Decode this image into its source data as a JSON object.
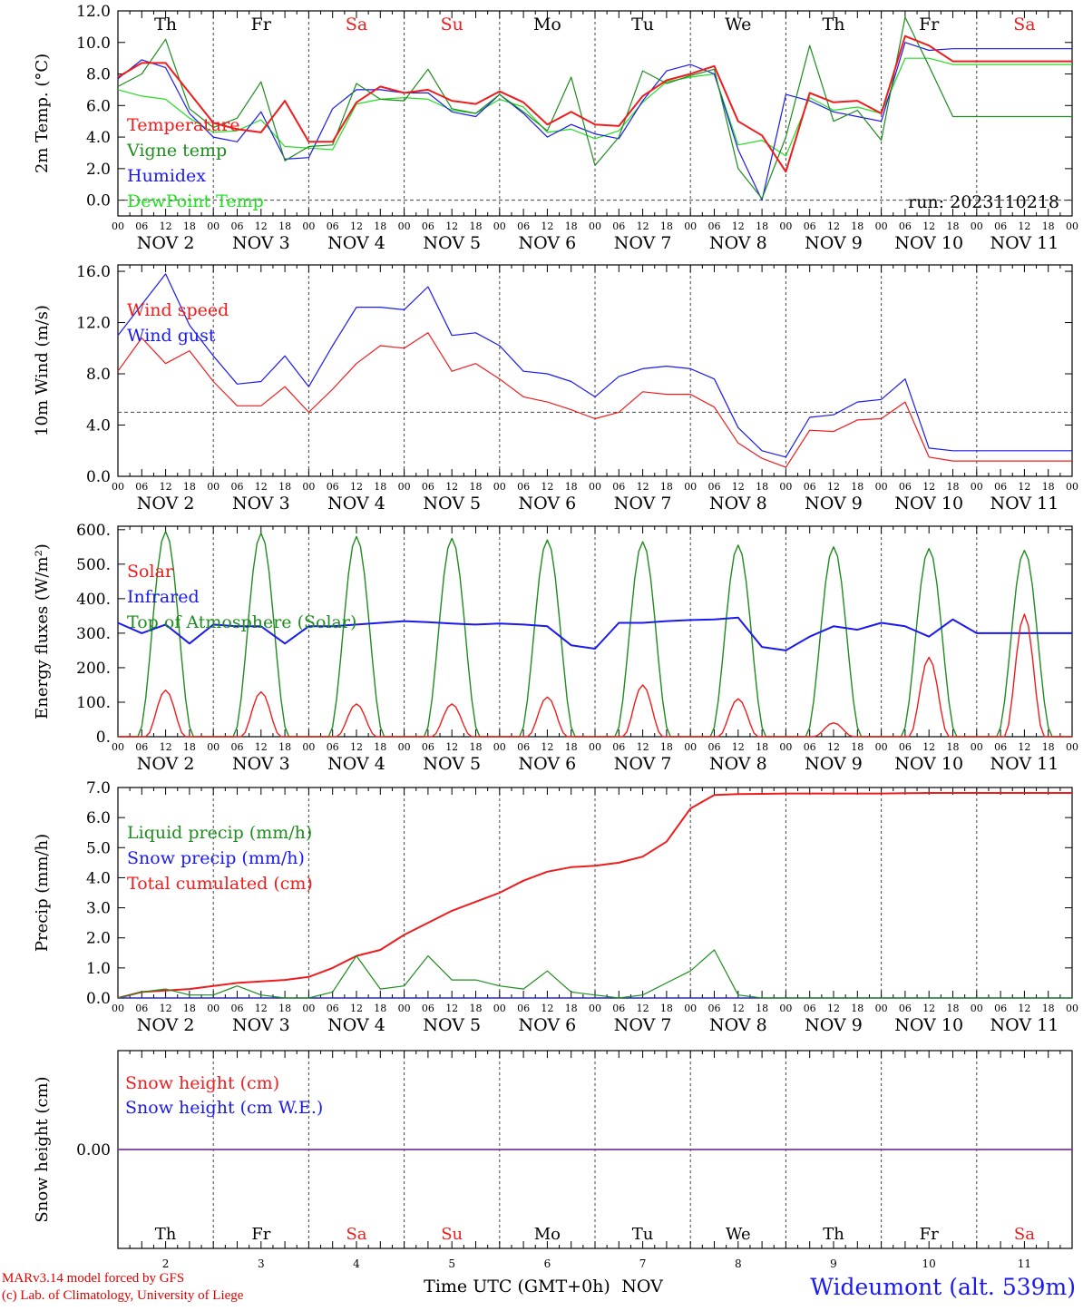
{
  "days": [
    "Th",
    "Fr",
    "Sa",
    "Su",
    "Mo",
    "Tu",
    "We",
    "Th",
    "Fr",
    "Sa"
  ],
  "weekend_days": [
    "Sa",
    "Su"
  ],
  "date_labels": [
    "NOV  2",
    "NOV  3",
    "NOV  4",
    "NOV  5",
    "NOV  6",
    "NOV  7",
    "NOV  8",
    "NOV  9",
    "NOV 10",
    "NOV 11"
  ],
  "bottom_day_numbers": [
    "2",
    "3",
    "4",
    "5",
    "6",
    "7",
    "8",
    "9",
    "10",
    "11"
  ],
  "hour_labels": [
    "00",
    "06",
    "12",
    "18"
  ],
  "hour_end": "00",
  "run_label": "run: 2023110218",
  "xlabel": "Time UTC (GMT+0h)",
  "xlabel_month": "NOV",
  "footer": {
    "line1": "MARv3.14 model forced by GFS",
    "line2": "(c) Lab. of Climatology, University of Liege",
    "station": "Wideumont (alt. 539m)"
  },
  "colors": {
    "red": "#ee1c1c",
    "green": "#1e8c1e",
    "blue": "#1a1aee",
    "lightgreen": "#22dd22",
    "purple": "#7a3a9a",
    "grid": "#444444"
  },
  "chart_data": [
    {
      "type": "line",
      "ylabel": "2m Temp. (°C)",
      "ylim": [
        -1,
        12
      ],
      "yticks": [
        "12.0",
        "10.0",
        "8.0",
        "6.0",
        "4.0",
        "2.0",
        "0.0"
      ],
      "reference_line": 0,
      "x_unit": "hours since 2023-11-02 00 UTC",
      "series": [
        {
          "name": "Temperature",
          "color": "red",
          "x": [
            0,
            6,
            12,
            18,
            24,
            30,
            36,
            42,
            48,
            54,
            60,
            66,
            72,
            78,
            84,
            90,
            96,
            102,
            108,
            114,
            120,
            126,
            132,
            138,
            144,
            150,
            156,
            162,
            168,
            174,
            180,
            186,
            192,
            198,
            204,
            210,
            216,
            222,
            228,
            234,
            240
          ],
          "values": [
            7.8,
            8.7,
            8.7,
            6.8,
            4.9,
            4.5,
            4.3,
            6.3,
            3.7,
            3.7,
            6.2,
            7.2,
            6.8,
            7.0,
            6.3,
            6.1,
            6.9,
            6.2,
            4.8,
            5.6,
            4.8,
            4.7,
            6.6,
            7.6,
            8.0,
            8.5,
            5.0,
            4.1,
            1.8,
            6.8,
            6.2,
            6.3,
            5.5,
            10.4,
            9.8,
            8.8,
            8.8,
            8.8,
            8.8,
            8.8,
            8.8
          ]
        },
        {
          "name": "Vigne temp",
          "color": "green",
          "x": [
            0,
            6,
            12,
            18,
            24,
            30,
            36,
            42,
            48,
            54,
            60,
            66,
            72,
            78,
            84,
            90,
            96,
            102,
            108,
            114,
            120,
            126,
            132,
            138,
            144,
            150,
            156,
            162,
            168,
            174,
            180,
            186,
            192,
            198,
            204,
            210,
            216,
            222,
            228,
            234,
            240
          ],
          "values": [
            7.2,
            8.0,
            10.2,
            5.8,
            4.6,
            5.2,
            7.5,
            2.5,
            3.4,
            3.5,
            7.4,
            6.4,
            6.3,
            8.3,
            5.8,
            5.5,
            6.7,
            5.6,
            4.4,
            7.8,
            2.2,
            4.0,
            8.2,
            7.4,
            7.9,
            8.3,
            2.0,
            0.1,
            4.0,
            9.8,
            5.0,
            5.7,
            3.8,
            11.6,
            8.5,
            5.3,
            5.3,
            5.3,
            5.3,
            5.3,
            5.3
          ]
        },
        {
          "name": "Humidex",
          "color": "blue",
          "x": [
            0,
            6,
            12,
            18,
            24,
            30,
            36,
            42,
            48,
            54,
            60,
            66,
            72,
            78,
            84,
            90,
            96,
            102,
            108,
            114,
            120,
            126,
            132,
            138,
            144,
            150,
            156,
            162,
            168,
            174,
            180,
            186,
            192,
            198,
            204,
            210,
            216,
            222,
            228,
            234,
            240
          ],
          "values": [
            7.7,
            8.9,
            8.4,
            5.5,
            4.0,
            3.7,
            5.6,
            2.6,
            2.7,
            5.8,
            7.0,
            7.0,
            6.8,
            6.8,
            5.6,
            5.3,
            6.7,
            5.5,
            4.0,
            4.8,
            4.2,
            3.9,
            6.3,
            8.2,
            8.6,
            8.0,
            3.2,
            0.0,
            6.7,
            6.3,
            5.6,
            5.3,
            5.0,
            10.0,
            9.5,
            9.6,
            9.6,
            9.6,
            9.6,
            9.6,
            9.6
          ]
        },
        {
          "name": "DewPoint Temp",
          "color": "lightgreen",
          "x": [
            0,
            6,
            12,
            18,
            24,
            30,
            36,
            42,
            48,
            54,
            60,
            66,
            72,
            78,
            84,
            90,
            96,
            102,
            108,
            114,
            120,
            126,
            132,
            138,
            144,
            150,
            156,
            162,
            168,
            174,
            180,
            186,
            192,
            198,
            204,
            210,
            216,
            222,
            228,
            234,
            240
          ],
          "values": [
            7.0,
            6.6,
            6.4,
            5.2,
            4.3,
            4.4,
            5.1,
            3.4,
            3.3,
            3.2,
            6.1,
            6.4,
            6.5,
            6.4,
            5.7,
            5.5,
            6.4,
            5.9,
            4.3,
            4.5,
            3.9,
            4.4,
            6.2,
            7.5,
            7.8,
            8.0,
            3.5,
            3.8,
            2.8,
            6.5,
            5.7,
            5.9,
            5.5,
            9.0,
            9.0,
            8.6,
            8.6,
            8.6,
            8.6,
            8.6,
            8.6
          ]
        }
      ]
    },
    {
      "type": "line",
      "ylabel": "10m Wind (m/s)",
      "ylim": [
        0,
        16.5
      ],
      "yticks": [
        "16.0",
        "12.0",
        "8.0",
        "4.0",
        "0.0"
      ],
      "reference_line": 5,
      "series": [
        {
          "name": "Wind speed",
          "color": "red",
          "x": [
            0,
            6,
            12,
            18,
            24,
            30,
            36,
            42,
            48,
            54,
            60,
            66,
            72,
            78,
            84,
            90,
            96,
            102,
            108,
            114,
            120,
            126,
            132,
            138,
            144,
            150,
            156,
            162,
            168,
            174,
            180,
            186,
            192,
            198,
            204,
            210,
            216,
            222,
            228,
            234,
            240
          ],
          "values": [
            8.2,
            10.8,
            8.8,
            9.8,
            7.4,
            5.5,
            5.5,
            7.0,
            5.0,
            6.8,
            8.8,
            10.2,
            10.0,
            11.2,
            8.2,
            8.8,
            7.6,
            6.2,
            5.8,
            5.2,
            4.5,
            5.0,
            6.6,
            6.4,
            6.4,
            5.4,
            2.6,
            1.4,
            0.7,
            3.6,
            3.5,
            4.4,
            4.5,
            5.8,
            1.5,
            1.2,
            1.2,
            1.2,
            1.2,
            1.2,
            1.2
          ]
        },
        {
          "name": "Wind gust",
          "color": "blue",
          "x": [
            0,
            6,
            12,
            18,
            24,
            30,
            36,
            42,
            48,
            54,
            60,
            66,
            72,
            78,
            84,
            90,
            96,
            102,
            108,
            114,
            120,
            126,
            132,
            138,
            144,
            150,
            156,
            162,
            168,
            174,
            180,
            186,
            192,
            198,
            204,
            210,
            216,
            222,
            228,
            234,
            240
          ],
          "values": [
            11.0,
            13.4,
            15.8,
            11.8,
            9.4,
            7.2,
            7.4,
            9.4,
            7.0,
            10.2,
            13.2,
            13.2,
            13.0,
            14.8,
            11.0,
            11.2,
            10.2,
            8.2,
            8.0,
            7.4,
            6.2,
            7.8,
            8.4,
            8.6,
            8.4,
            7.6,
            3.8,
            2.0,
            1.5,
            4.6,
            4.8,
            5.8,
            6.0,
            7.6,
            2.2,
            2.0,
            2.0,
            2.0,
            2.0,
            2.0,
            2.0
          ]
        }
      ]
    },
    {
      "type": "line",
      "ylabel": "Energy fluxes (W/m²)",
      "ylim": [
        0,
        610
      ],
      "yticks": [
        "600.",
        "500.",
        "400.",
        "300.",
        "200.",
        "100.",
        "0."
      ],
      "series": [
        {
          "name": "Solar",
          "color": "red",
          "peaks": [
            135,
            130,
            95,
            95,
            115,
            150,
            110,
            40,
            230,
            355
          ]
        },
        {
          "name": "Infrared",
          "color": "blue",
          "x": [
            0,
            6,
            12,
            18,
            24,
            30,
            36,
            42,
            48,
            54,
            60,
            66,
            72,
            78,
            84,
            90,
            96,
            102,
            108,
            114,
            120,
            126,
            132,
            138,
            144,
            150,
            156,
            162,
            168,
            174,
            180,
            186,
            192,
            198,
            204,
            210,
            216,
            222,
            228,
            234,
            240
          ],
          "values": [
            330,
            300,
            325,
            270,
            325,
            320,
            320,
            270,
            320,
            320,
            325,
            330,
            335,
            332,
            328,
            325,
            328,
            325,
            320,
            265,
            255,
            330,
            330,
            335,
            338,
            340,
            345,
            260,
            250,
            290,
            320,
            310,
            330,
            320,
            290,
            340,
            300,
            300,
            300,
            300,
            300
          ]
        },
        {
          "name": "Top of Atmosphere (Solar)",
          "color": "green",
          "peaks": [
            595,
            590,
            580,
            575,
            570,
            565,
            555,
            550,
            545,
            540
          ]
        }
      ]
    },
    {
      "type": "line",
      "ylabel": "Precip (mm/h)",
      "ylim": [
        0,
        7
      ],
      "yticks": [
        "7.0",
        "6.0",
        "5.0",
        "4.0",
        "3.0",
        "2.0",
        "1.0",
        "0.0"
      ],
      "series": [
        {
          "name": "Liquid precip (mm/h)",
          "color": "green",
          "x": [
            0,
            6,
            12,
            18,
            24,
            30,
            36,
            42,
            48,
            54,
            60,
            66,
            72,
            78,
            84,
            90,
            96,
            102,
            108,
            114,
            120,
            126,
            132,
            138,
            144,
            150,
            156,
            162,
            168,
            174,
            180,
            186,
            192,
            198,
            204,
            210,
            216,
            222,
            228,
            234,
            240
          ],
          "values": [
            0,
            0.2,
            0.3,
            0.1,
            0.1,
            0.4,
            0.1,
            0,
            0,
            0.2,
            1.4,
            0.3,
            0.4,
            1.4,
            0.6,
            0.6,
            0.4,
            0.3,
            0.9,
            0.2,
            0.1,
            0,
            0.1,
            0.5,
            0.9,
            1.6,
            0.1,
            0,
            0,
            0,
            0,
            0,
            0,
            0,
            0,
            0,
            0,
            0,
            0,
            0,
            0
          ]
        },
        {
          "name": "Snow precip (mm/h)",
          "color": "blue",
          "x": [
            0,
            240
          ],
          "values": [
            0,
            0
          ]
        },
        {
          "name": "Total cumulated (cm)",
          "color": "red",
          "x": [
            0,
            6,
            12,
            18,
            24,
            30,
            36,
            42,
            48,
            54,
            60,
            66,
            72,
            78,
            84,
            90,
            96,
            102,
            108,
            114,
            120,
            126,
            132,
            138,
            144,
            150,
            156,
            162,
            168,
            174,
            180,
            186,
            192,
            198,
            204,
            210,
            216,
            222,
            228,
            234,
            240
          ],
          "values": [
            0,
            0.2,
            0.25,
            0.3,
            0.4,
            0.5,
            0.55,
            0.6,
            0.7,
            1.0,
            1.4,
            1.6,
            2.1,
            2.5,
            2.9,
            3.2,
            3.5,
            3.9,
            4.2,
            4.35,
            4.4,
            4.5,
            4.7,
            5.2,
            6.3,
            6.75,
            6.78,
            6.79,
            6.8,
            6.8,
            6.8,
            6.8,
            6.8,
            6.81,
            6.82,
            6.82,
            6.82,
            6.82,
            6.82,
            6.82,
            6.82
          ]
        }
      ]
    },
    {
      "type": "line",
      "ylabel": "Snow height (cm)",
      "ylim": [
        -1,
        1
      ],
      "yticks": [
        "0.00"
      ],
      "series": [
        {
          "name": "Snow height (cm)",
          "color": "red",
          "x": [
            0,
            240
          ],
          "values": [
            0,
            0
          ]
        },
        {
          "name": "Snow height (cm W.E.)",
          "color": "blue",
          "x": [
            0,
            240
          ],
          "values": [
            0,
            0
          ]
        }
      ]
    }
  ]
}
